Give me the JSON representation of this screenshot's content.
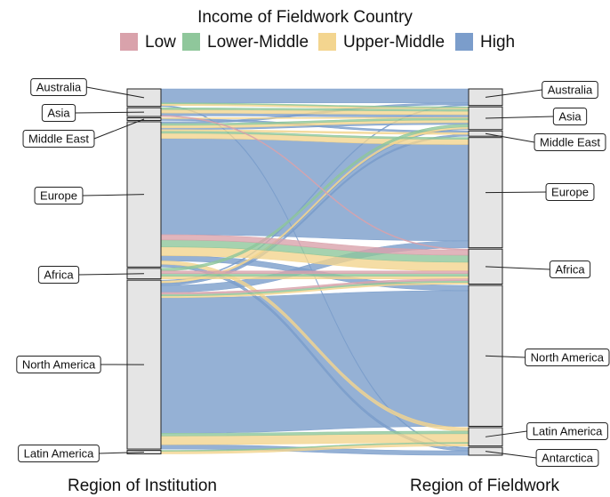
{
  "chart_data": {
    "type": "alluvial",
    "legend": {
      "title": "Income of Fieldwork Country",
      "position": "top",
      "items": [
        {
          "name": "Low",
          "color": "#d9a2ab"
        },
        {
          "name": "Lower-Middle",
          "color": "#8fc79b"
        },
        {
          "name": "Upper-Middle",
          "color": "#f3d58f"
        },
        {
          "name": "High",
          "color": "#7b9dcb"
        }
      ]
    },
    "left_axis": {
      "label": "Region of Institution",
      "strata": [
        "Australia",
        "Asia",
        "Middle East",
        "Europe",
        "Africa",
        "North America",
        "Latin America"
      ]
    },
    "right_axis": {
      "label": "Region of Fieldwork",
      "strata": [
        "Australia",
        "Asia",
        "Middle East",
        "Europe",
        "Africa",
        "North America",
        "Latin America",
        "Antarctica"
      ]
    },
    "flows": [
      {
        "from": "Australia",
        "to": "Australia",
        "income": "High",
        "value": 16
      },
      {
        "from": "Australia",
        "to": "Asia",
        "income": "Upper-Middle",
        "value": 2
      },
      {
        "from": "Australia",
        "to": "Asia",
        "income": "Lower-Middle",
        "value": 1
      },
      {
        "from": "Australia",
        "to": "Antarctica",
        "income": "High",
        "value": 1
      },
      {
        "from": "Asia",
        "to": "Asia",
        "income": "Upper-Middle",
        "value": 4
      },
      {
        "from": "Asia",
        "to": "Asia",
        "income": "High",
        "value": 3
      },
      {
        "from": "Asia",
        "to": "Asia",
        "income": "Lower-Middle",
        "value": 2
      },
      {
        "from": "Asia",
        "to": "Africa",
        "income": "Low",
        "value": 1
      },
      {
        "from": "Middle East",
        "to": "Middle East",
        "income": "High",
        "value": 2
      },
      {
        "from": "Middle East",
        "to": "Asia",
        "income": "Upper-Middle",
        "value": 1
      },
      {
        "from": "Europe",
        "to": "Australia",
        "income": "High",
        "value": 2
      },
      {
        "from": "Europe",
        "to": "Asia",
        "income": "Lower-Middle",
        "value": 2
      },
      {
        "from": "Europe",
        "to": "Asia",
        "income": "Upper-Middle",
        "value": 3
      },
      {
        "from": "Europe",
        "to": "Asia",
        "income": "High",
        "value": 2
      },
      {
        "from": "Europe",
        "to": "Middle East",
        "income": "Upper-Middle",
        "value": 2
      },
      {
        "from": "Europe",
        "to": "Europe",
        "income": "High",
        "value": 110
      },
      {
        "from": "Europe",
        "to": "Europe",
        "income": "Upper-Middle",
        "value": 6
      },
      {
        "from": "Europe",
        "to": "Europe",
        "income": "Lower-Middle",
        "value": 2
      },
      {
        "from": "Europe",
        "to": "Africa",
        "income": "Low",
        "value": 6
      },
      {
        "from": "Europe",
        "to": "Africa",
        "income": "Lower-Middle",
        "value": 8
      },
      {
        "from": "Europe",
        "to": "Africa",
        "income": "Upper-Middle",
        "value": 10
      },
      {
        "from": "Europe",
        "to": "North America",
        "income": "High",
        "value": 6
      },
      {
        "from": "Europe",
        "to": "Latin America",
        "income": "Upper-Middle",
        "value": 4
      },
      {
        "from": "Europe",
        "to": "Antarctica",
        "income": "High",
        "value": 3
      },
      {
        "from": "Africa",
        "to": "Asia",
        "income": "Lower-Middle",
        "value": 3
      },
      {
        "from": "Africa",
        "to": "Africa",
        "income": "Low",
        "value": 3
      },
      {
        "from": "Africa",
        "to": "Africa",
        "income": "Lower-Middle",
        "value": 3
      },
      {
        "from": "Africa",
        "to": "Africa",
        "income": "Upper-Middle",
        "value": 3
      },
      {
        "from": "North America",
        "to": "Australia",
        "income": "High",
        "value": 1
      },
      {
        "from": "North America",
        "to": "Asia",
        "income": "Upper-Middle",
        "value": 2
      },
      {
        "from": "North America",
        "to": "Asia",
        "income": "High",
        "value": 1
      },
      {
        "from": "North America",
        "to": "Middle East",
        "income": "High",
        "value": 2
      },
      {
        "from": "North America",
        "to": "Europe",
        "income": "High",
        "value": 8
      },
      {
        "from": "North America",
        "to": "Africa",
        "income": "Low",
        "value": 2
      },
      {
        "from": "North America",
        "to": "Africa",
        "income": "Lower-Middle",
        "value": 2
      },
      {
        "from": "North America",
        "to": "Africa",
        "income": "Upper-Middle",
        "value": 2
      },
      {
        "from": "North America",
        "to": "North America",
        "income": "High",
        "value": 155
      },
      {
        "from": "North America",
        "to": "Latin America",
        "income": "Upper-Middle",
        "value": 10
      },
      {
        "from": "North America",
        "to": "Latin America",
        "income": "Lower-Middle",
        "value": 3
      },
      {
        "from": "North America",
        "to": "Antarctica",
        "income": "High",
        "value": 5
      },
      {
        "from": "Latin America",
        "to": "Latin America",
        "income": "Upper-Middle",
        "value": 3
      },
      {
        "from": "Latin America",
        "to": "Latin America",
        "income": "Lower-Middle",
        "value": 1
      }
    ]
  }
}
